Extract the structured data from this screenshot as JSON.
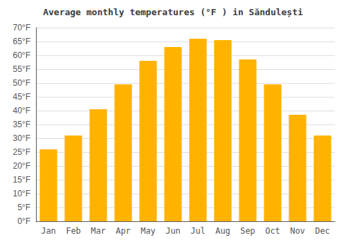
{
  "chart_data": {
    "type": "bar",
    "title": "Average monthly temperatures (°F ) in Săndulești",
    "categories": [
      "Jan",
      "Feb",
      "Mar",
      "Apr",
      "May",
      "Jun",
      "Jul",
      "Aug",
      "Sep",
      "Oct",
      "Nov",
      "Dec"
    ],
    "values": [
      26,
      31,
      40.5,
      49.5,
      58,
      63,
      66,
      65.5,
      58.5,
      49.5,
      38.5,
      31
    ],
    "color": "#FFB300",
    "ylim": [
      0,
      70
    ],
    "yticks": [
      {
        "value": 0,
        "label": "0°F"
      },
      {
        "value": 5,
        "label": "5°F"
      },
      {
        "value": 10,
        "label": "10°F"
      },
      {
        "value": 15,
        "label": "15°F"
      },
      {
        "value": 20,
        "label": "20°F"
      },
      {
        "value": 25,
        "label": "25°F"
      },
      {
        "value": 30,
        "label": "30°F"
      },
      {
        "value": 35,
        "label": "35°F"
      },
      {
        "value": 40,
        "label": "40°F"
      },
      {
        "value": 45,
        "label": "45°F"
      },
      {
        "value": 50,
        "label": "50°F"
      },
      {
        "value": 55,
        "label": "55°F"
      },
      {
        "value": 60,
        "label": "60°F"
      },
      {
        "value": 65,
        "label": "65°F"
      },
      {
        "value": 70,
        "label": "70°F"
      }
    ],
    "grid": true
  }
}
